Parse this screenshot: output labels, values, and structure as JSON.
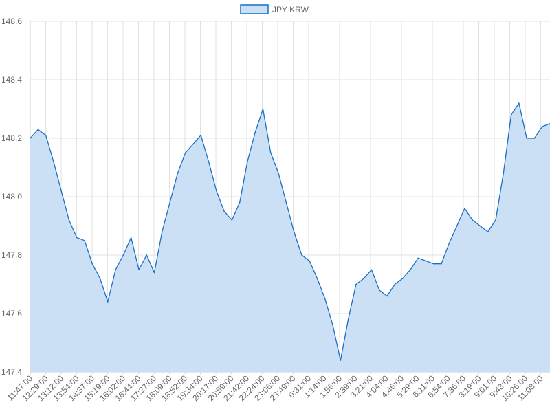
{
  "chart_data": {
    "type": "area",
    "legend": {
      "position": "top",
      "entries": [
        {
          "label": "JPY KRW",
          "fill": "#cce0f5",
          "stroke": "#1a6fc4"
        }
      ]
    },
    "ylim": [
      147.4,
      148.6
    ],
    "y_ticks": [
      "147.4",
      "147.6",
      "147.8",
      "148.0",
      "148.2",
      "148.4",
      "148.6"
    ],
    "x_ticks": [
      "11:47:00",
      "12:29:00",
      "13:12:00",
      "13:54:00",
      "14:37:00",
      "15:19:00",
      "16:02:00",
      "16:44:00",
      "17:27:00",
      "18:09:00",
      "18:52:00",
      "19:34:00",
      "20:17:00",
      "20:59:00",
      "21:42:00",
      "22:24:00",
      "23:06:00",
      "23:49:00",
      "0:31:00",
      "1:14:00",
      "1:56:00",
      "2:39:00",
      "3:21:00",
      "4:04:00",
      "4:46:00",
      "5:29:00",
      "6:11:00",
      "6:54:00",
      "7:36:00",
      "8:19:00",
      "9:01:00",
      "9:43:00",
      "10:26:00",
      "11:08:00"
    ],
    "grid": true,
    "series": [
      {
        "name": "JPY KRW",
        "color": "#1a6fc4",
        "fill": "#cce0f5",
        "x": [
          "11:47:00",
          "12:08:00",
          "12:29:00",
          "12:50:00",
          "13:12:00",
          "13:33:00",
          "13:54:00",
          "14:16:00",
          "14:37:00",
          "14:58:00",
          "15:19:00",
          "15:40:00",
          "16:02:00",
          "16:23:00",
          "16:44:00",
          "17:05:00",
          "17:27:00",
          "17:48:00",
          "18:09:00",
          "18:30:00",
          "18:52:00",
          "19:13:00",
          "19:34:00",
          "19:55:00",
          "20:17:00",
          "20:38:00",
          "20:59:00",
          "21:20:00",
          "21:42:00",
          "22:03:00",
          "22:24:00",
          "22:45:00",
          "23:06:00",
          "23:27:00",
          "23:49:00",
          "0:10:00",
          "0:31:00",
          "0:52:00",
          "1:14:00",
          "1:35:00",
          "1:56:00",
          "2:17:00",
          "2:39:00",
          "3:00:00",
          "3:21:00",
          "3:42:00",
          "4:04:00",
          "4:25:00",
          "4:46:00",
          "5:07:00",
          "5:29:00",
          "5:50:00",
          "6:11:00",
          "6:32:00",
          "6:54:00",
          "7:15:00",
          "7:36:00",
          "7:57:00",
          "8:19:00",
          "8:40:00",
          "9:01:00",
          "9:22:00",
          "9:43:00",
          "10:04:00",
          "10:26:00",
          "10:47:00",
          "11:08:00",
          "11:29:00"
        ],
        "values": [
          148.2,
          148.23,
          148.21,
          148.12,
          148.02,
          147.92,
          147.86,
          147.85,
          147.77,
          147.72,
          147.64,
          147.75,
          147.8,
          147.86,
          147.75,
          147.8,
          147.74,
          147.88,
          147.98,
          148.08,
          148.15,
          148.18,
          148.21,
          148.12,
          148.02,
          147.95,
          147.92,
          147.98,
          148.12,
          148.22,
          148.3,
          148.15,
          148.08,
          147.98,
          147.88,
          147.8,
          147.78,
          147.72,
          147.65,
          147.56,
          147.44,
          147.58,
          147.7,
          147.72,
          147.75,
          147.68,
          147.66,
          147.7,
          147.72,
          147.75,
          147.79,
          147.78,
          147.77,
          147.77,
          147.84,
          147.9,
          147.96,
          147.92,
          147.9,
          147.88,
          147.92,
          148.08,
          148.28,
          148.32,
          148.2,
          148.2,
          148.24,
          148.25
        ]
      }
    ]
  }
}
